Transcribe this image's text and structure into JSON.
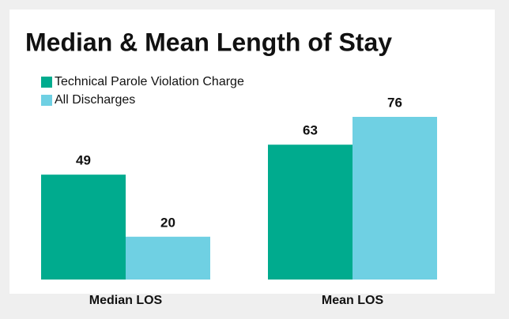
{
  "chart_data": {
    "type": "bar",
    "title": "Median & Mean Length of Stay",
    "categories": [
      "Median LOS",
      "Mean LOS"
    ],
    "series": [
      {
        "name": "Technical Parole Violation Charge",
        "color": "#00ab8e",
        "values": [
          49,
          63
        ]
      },
      {
        "name": "All Discharges",
        "color": "#6fd0e3",
        "values": [
          20,
          76
        ]
      }
    ]
  }
}
